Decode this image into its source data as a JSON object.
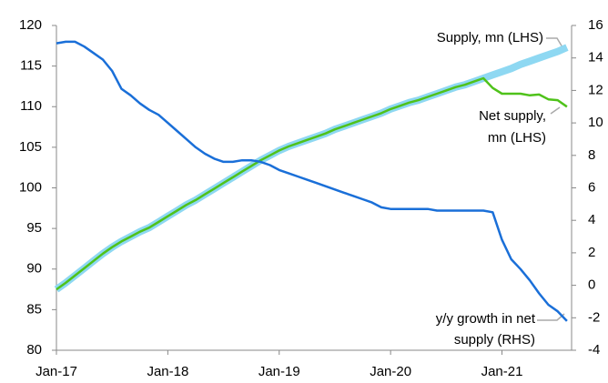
{
  "chart_data": {
    "type": "line",
    "categories": [
      "Jan-17",
      null,
      null,
      null,
      null,
      null,
      null,
      null,
      null,
      null,
      null,
      null,
      "Jan-18",
      null,
      null,
      null,
      null,
      null,
      null,
      null,
      null,
      null,
      null,
      null,
      "Jan-19",
      null,
      null,
      null,
      null,
      null,
      null,
      null,
      null,
      null,
      null,
      null,
      "Jan-20",
      null,
      null,
      null,
      null,
      null,
      null,
      null,
      null,
      null,
      null,
      null,
      "Jan-21",
      null,
      null,
      null,
      null,
      null,
      null,
      null
    ],
    "series": [
      {
        "name": "Supply, mn (LHS)",
        "color": "#8ed8f2",
        "width": 8,
        "values": [
          87.5,
          88.3,
          89.2,
          90.1,
          91.0,
          91.9,
          92.7,
          93.4,
          94.0,
          94.6,
          95.1,
          95.8,
          96.5,
          97.2,
          97.9,
          98.5,
          99.2,
          99.9,
          100.6,
          101.3,
          102.0,
          102.7,
          103.4,
          104.0,
          104.6,
          105.1,
          105.5,
          105.9,
          106.3,
          106.7,
          107.2,
          107.6,
          108.0,
          108.4,
          108.8,
          109.2,
          109.7,
          110.1,
          110.5,
          110.8,
          111.2,
          111.6,
          112.0,
          112.4,
          112.7,
          113.1,
          113.5,
          113.9,
          114.3,
          114.7,
          115.2,
          115.6,
          116.0,
          116.4,
          116.8,
          117.3
        ]
      },
      {
        "name": "Net supply, mn (LHS)",
        "color": "#4fc21a",
        "width": 2.5,
        "values": [
          87.5,
          88.3,
          89.2,
          90.1,
          91.0,
          91.9,
          92.7,
          93.4,
          94.0,
          94.6,
          95.1,
          95.8,
          96.5,
          97.2,
          97.9,
          98.5,
          99.2,
          99.9,
          100.6,
          101.3,
          102.0,
          102.7,
          103.4,
          104.0,
          104.6,
          105.1,
          105.5,
          105.9,
          106.3,
          106.7,
          107.2,
          107.6,
          108.0,
          108.4,
          108.8,
          109.2,
          109.7,
          110.1,
          110.5,
          110.8,
          111.2,
          111.6,
          112.0,
          112.4,
          112.7,
          113.1,
          113.5,
          112.3,
          111.6,
          111.6,
          111.6,
          111.4,
          111.5,
          110.9,
          110.8,
          110.0
        ]
      },
      {
        "name": "y/y growth in net supply (RHS)",
        "color": "#1a6fd8",
        "width": 2.5,
        "axis": "y2",
        "values": [
          14.9,
          15.0,
          15.0,
          14.7,
          14.3,
          13.9,
          13.2,
          12.1,
          11.7,
          11.2,
          10.8,
          10.5,
          10.0,
          9.5,
          9.0,
          8.5,
          8.1,
          7.8,
          7.6,
          7.6,
          7.7,
          7.7,
          7.6,
          7.4,
          7.1,
          6.9,
          6.7,
          6.5,
          6.3,
          6.1,
          5.9,
          5.7,
          5.5,
          5.3,
          5.1,
          4.8,
          4.7,
          4.7,
          4.7,
          4.7,
          4.7,
          4.6,
          4.6,
          4.6,
          4.6,
          4.6,
          4.6,
          4.5,
          2.8,
          1.6,
          1.0,
          0.3,
          -0.5,
          -1.2,
          -1.6,
          -2.2
        ]
      }
    ],
    "annotations": [
      {
        "lines": [
          "Supply, mn (LHS)"
        ]
      },
      {
        "lines": [
          "Net supply,",
          "mn (LHS)"
        ]
      },
      {
        "lines": [
          "y/y growth in net",
          "supply (RHS)"
        ]
      }
    ],
    "ylim": [
      80,
      120
    ],
    "yticks": [
      80,
      85,
      90,
      95,
      100,
      105,
      110,
      115,
      120
    ],
    "y2lim": [
      -4,
      16
    ],
    "y2ticks": [
      -4,
      -2,
      0,
      2,
      4,
      6,
      8,
      10,
      12,
      14,
      16
    ],
    "grid": false
  }
}
